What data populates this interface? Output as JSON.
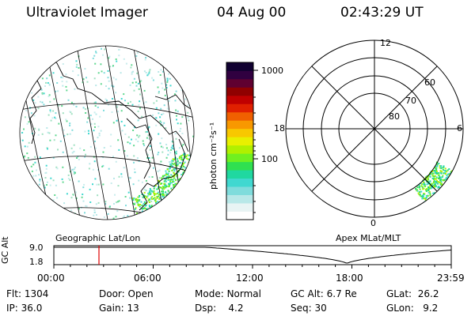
{
  "header": {
    "instrument": "Ultraviolet Imager",
    "date": "04 Aug 00",
    "time": "02:43:29 UT"
  },
  "colorbar": {
    "unit_label": "photon cm⁻²s⁻¹",
    "ticks": [
      {
        "label": "1000",
        "value": 1000
      },
      {
        "label": "100",
        "value": 100
      }
    ],
    "colors": [
      "#ffffff",
      "#e8f4f4",
      "#b8e8e8",
      "#7fdcdc",
      "#40d8d0",
      "#20d8a0",
      "#30e050",
      "#70f020",
      "#b0f000",
      "#e8f000",
      "#f8c800",
      "#f89800",
      "#f06000",
      "#e02000",
      "#c00000",
      "#900000",
      "#600030",
      "#300040",
      "#100030"
    ]
  },
  "geo_map": {
    "caption": "Geographic Lat/Lon"
  },
  "polar_plot": {
    "caption": "Apex MLat/MLT",
    "mlt_labels": {
      "top": "12",
      "right": "6",
      "bottom": "0",
      "left": "18"
    },
    "lat_labels": [
      {
        "label": "60",
        "lat": 60
      },
      {
        "label": "70",
        "lat": 70
      },
      {
        "label": "80",
        "lat": 80
      }
    ]
  },
  "timeline": {
    "ylabel": "GC Alt",
    "y_ticks": [
      "9.0",
      "1.8"
    ],
    "x_ticks": [
      "00:00",
      "06:00",
      "12:00",
      "18:00",
      "23:59"
    ],
    "marker_time_hours": 2.725,
    "marker_color": "#e00000"
  },
  "footer": [
    [
      {
        "key": "Flt:",
        "val": "1304"
      },
      {
        "key": "Door:",
        "val": "Open"
      },
      {
        "key": "Mode:",
        "val": "Normal"
      },
      {
        "key": "GC Alt:",
        "val": "6.7 Re"
      },
      {
        "key": "GLat:",
        "val": "26.2"
      }
    ],
    [
      {
        "key": "IP:",
        "val": "36.0"
      },
      {
        "key": "Gain:",
        "val": "13"
      },
      {
        "key": "Dsp:",
        "val": "4.2"
      },
      {
        "key": "Seq:",
        "val": "30"
      },
      {
        "key": "GLon:",
        "val": "9.2"
      }
    ]
  ]
}
